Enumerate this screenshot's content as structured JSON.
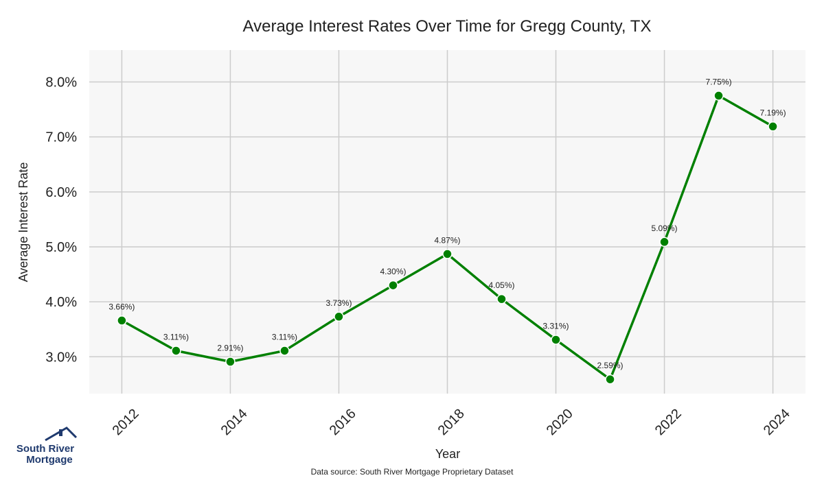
{
  "chart_data": {
    "type": "line",
    "title": "Average Interest Rates Over Time for Gregg County, TX",
    "xlabel": "Year",
    "ylabel": "Average Interest Rate",
    "x": [
      2012,
      2013,
      2014,
      2015,
      2016,
      2017,
      2018,
      2019,
      2020,
      2021,
      2022,
      2023,
      2024
    ],
    "series": [
      {
        "values": [
          3.66,
          3.11,
          2.91,
          3.11,
          3.73,
          4.3,
          4.87,
          4.05,
          3.31,
          2.59,
          5.09,
          7.75,
          7.19
        ],
        "labels": [
          "3.66%)",
          "3.11%)",
          "2.91%)",
          "3.11%)",
          "3.73%)",
          "4.30%)",
          "4.87%)",
          "4.05%)",
          "3.31%)",
          "2.59%)",
          "5.09%)",
          "7.75%)",
          "7.19%)"
        ],
        "color": "#008000"
      }
    ],
    "xticks": [
      "2012",
      "2014",
      "2016",
      "2018",
      "2020",
      "2022",
      "2024"
    ],
    "xtick_values": [
      2012,
      2014,
      2016,
      2018,
      2020,
      2022,
      2024
    ],
    "yticks": [
      "3.0%",
      "4.0%",
      "5.0%",
      "6.0%",
      "7.0%",
      "8.0%"
    ],
    "ytick_values": [
      3,
      4,
      5,
      6,
      7,
      8
    ],
    "xlim": [
      2011.4,
      2024.6
    ],
    "ylim": [
      2.33,
      8.58
    ],
    "grid": true,
    "legend": "none",
    "plot_background": "#f7f7f7",
    "grid_color": "#cccccc"
  },
  "footer": {
    "source_note": "Data source: South River Mortgage Proprietary Dataset"
  },
  "logo": {
    "line1": "South River",
    "line2": "Mortgage",
    "color": "#1f3a6e",
    "icon": "house-roof-icon"
  }
}
